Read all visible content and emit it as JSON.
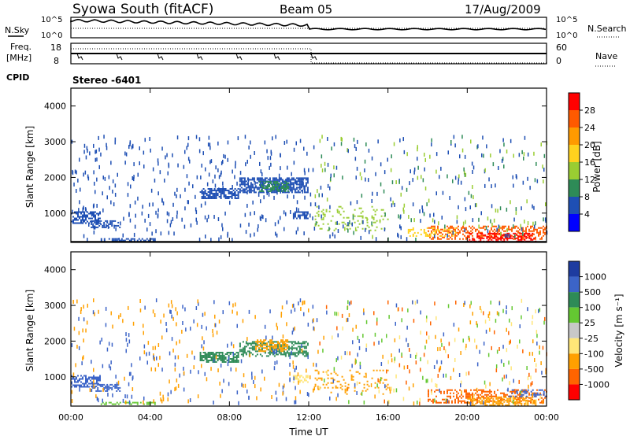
{
  "header": {
    "station": "Syowa South (fitACF)",
    "beam": "Beam 05",
    "date": "17/Aug/2009"
  },
  "noise_panel": {
    "left_label": "N.Sky",
    "left_ticks": [
      "10^5",
      "10^0"
    ],
    "right_label": "N.Search",
    "right_ticks": [
      "10^5",
      "10^0"
    ]
  },
  "freq_panel": {
    "left_label_line1": "Freq.",
    "left_label_line2": "[MHz]",
    "left_ticks": [
      "18",
      "8"
    ],
    "right_label": "Nave",
    "right_ticks": [
      "60",
      "0"
    ],
    "cpid_label": "CPID",
    "cpid_value": "Stereo -6401"
  },
  "power_scale": {
    "label": "Power [dB]",
    "ticks": [
      "28",
      "24",
      "20",
      "16",
      "12",
      "8",
      "4"
    ],
    "colors": [
      "#ff0000",
      "#ff5a00",
      "#ff9a00",
      "#ffd21e",
      "#9acd32",
      "#2e8b57",
      "#1e4fb4",
      "#0000ff"
    ]
  },
  "velocity_scale": {
    "label": "Velocity [m s⁻¹]",
    "ticks": [
      "1000",
      "500",
      "100",
      "25",
      "-25",
      "-100",
      "-500",
      "-1000"
    ],
    "colors": [
      "#1e3ca0",
      "#3c64c8",
      "#2e8b57",
      "#64c832",
      "#c8c8c8",
      "#ffe678",
      "#ffa000",
      "#ff6400",
      "#ff0000"
    ]
  },
  "chart_data": [
    {
      "type": "heatmap",
      "panel": "power",
      "ylabel": "Slant Range [km]",
      "yticks": [
        "4000",
        "3000",
        "2000",
        "1000"
      ],
      "ylim": [
        180,
        4500
      ],
      "xlim": [
        0,
        24
      ],
      "regions": [
        {
          "t0": 0.0,
          "t1": 1.5,
          "r0": 700,
          "r1": 1050,
          "color": "#1e4fb4",
          "density": 0.6
        },
        {
          "t0": 1.0,
          "t1": 2.5,
          "r0": 600,
          "r1": 800,
          "color": "#1e4fb4",
          "density": 0.5
        },
        {
          "t0": 1.5,
          "t1": 4.3,
          "r0": 200,
          "r1": 300,
          "color": "#1e4fb4",
          "density": 0.6
        },
        {
          "t0": 6.5,
          "t1": 8.5,
          "r0": 1400,
          "r1": 1700,
          "color": "#1e4fb4",
          "density": 0.7
        },
        {
          "t0": 8.5,
          "t1": 12.0,
          "r0": 1550,
          "r1": 2000,
          "color": "#1e4fb4",
          "density": 0.7
        },
        {
          "t0": 9.5,
          "t1": 11.0,
          "r0": 1600,
          "r1": 1900,
          "color": "#2e8b57",
          "density": 0.6
        },
        {
          "t0": 11.2,
          "t1": 12.0,
          "r0": 850,
          "r1": 1050,
          "color": "#1e4fb4",
          "density": 0.7
        },
        {
          "t0": 18.0,
          "t1": 24.0,
          "r0": 250,
          "r1": 650,
          "color": "#ff5a00",
          "density": 0.4
        },
        {
          "t0": 20.0,
          "t1": 23.5,
          "r0": 200,
          "r1": 450,
          "color": "#ff0000",
          "density": 0.5
        },
        {
          "t0": 17.0,
          "t1": 19.5,
          "r0": 350,
          "r1": 600,
          "color": "#ffd21e",
          "density": 0.3
        },
        {
          "t0": 12.3,
          "t1": 16.0,
          "r0": 500,
          "r1": 1200,
          "color": "#9acd32",
          "density": 0.15
        }
      ]
    },
    {
      "type": "heatmap",
      "panel": "velocity",
      "ylabel": "Slant Range [km]",
      "yticks": [
        "4000",
        "3000",
        "2000",
        "1000"
      ],
      "ylim": [
        180,
        4500
      ],
      "xlim": [
        0,
        24
      ],
      "xlabel": "Time UT",
      "xticks": [
        "00:00",
        "04:00",
        "08:00",
        "12:00",
        "16:00",
        "20:00",
        "00:00"
      ],
      "regions": [
        {
          "t0": 0.0,
          "t1": 1.5,
          "r0": 700,
          "r1": 1050,
          "color": "#3c64c8",
          "density": 0.6
        },
        {
          "t0": 1.0,
          "t1": 2.5,
          "r0": 600,
          "r1": 800,
          "color": "#3c64c8",
          "density": 0.5
        },
        {
          "t0": 1.5,
          "t1": 4.3,
          "r0": 200,
          "r1": 300,
          "color": "#64c832",
          "density": 0.6
        },
        {
          "t0": 6.5,
          "t1": 8.5,
          "r0": 1400,
          "r1": 1700,
          "color": "#2e8b57",
          "density": 0.7
        },
        {
          "t0": 8.5,
          "t1": 12.0,
          "r0": 1550,
          "r1": 2000,
          "color": "#2e8b57",
          "density": 0.5
        },
        {
          "t0": 9.3,
          "t1": 11.0,
          "r0": 1700,
          "r1": 2050,
          "color": "#ffa000",
          "density": 0.5
        },
        {
          "t0": 11.2,
          "t1": 12.0,
          "r0": 850,
          "r1": 1050,
          "color": "#ffe678",
          "density": 0.7
        },
        {
          "t0": 18.0,
          "t1": 24.0,
          "r0": 250,
          "r1": 650,
          "color": "#ff6400",
          "density": 0.35
        },
        {
          "t0": 20.0,
          "t1": 23.5,
          "r0": 200,
          "r1": 450,
          "color": "#ffa000",
          "density": 0.45
        },
        {
          "t0": 22.0,
          "t1": 24.0,
          "r0": 450,
          "r1": 650,
          "color": "#3c64c8",
          "density": 0.3
        },
        {
          "t0": 12.3,
          "t1": 16.0,
          "r0": 500,
          "r1": 1200,
          "color": "#ffa000",
          "density": 0.15
        }
      ]
    }
  ]
}
